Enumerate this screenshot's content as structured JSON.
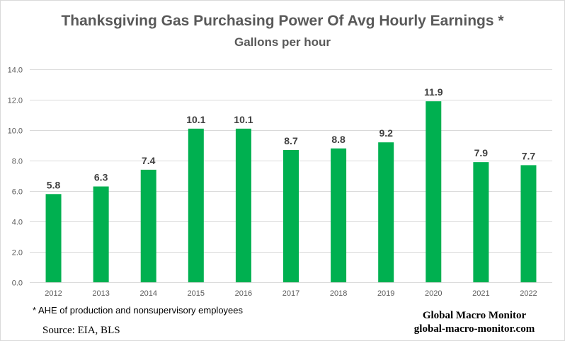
{
  "chart_data": {
    "type": "bar",
    "title": "Thanksgiving Gas Purchasing Power Of Avg Hourly Earnings *",
    "subtitle": "Gallons per hour",
    "categories": [
      "2012",
      "2013",
      "2014",
      "2015",
      "2016",
      "2017",
      "2018",
      "2019",
      "2020",
      "2021",
      "2022"
    ],
    "values": [
      5.8,
      6.3,
      7.4,
      10.1,
      10.1,
      8.7,
      8.8,
      9.2,
      11.9,
      7.9,
      7.7
    ],
    "value_labels": [
      "5.8",
      "6.3",
      "7.4",
      "10.1",
      "10.1",
      "8.7",
      "8.8",
      "9.2",
      "11.9",
      "7.9",
      "7.7"
    ],
    "ylim": [
      0,
      14
    ],
    "yticks": [
      "0.0",
      "2.0",
      "4.0",
      "6.0",
      "8.0",
      "10.0",
      "12.0",
      "14.0"
    ],
    "ytick_values": [
      0,
      2,
      4,
      6,
      8,
      10,
      12,
      14
    ],
    "grid": true,
    "xlabel": "",
    "ylabel": "",
    "bar_color": "#00b050",
    "grid_color": "#d9d9d9"
  },
  "footnote": "* AHE of production and nonsupervisory employees",
  "source": "Source:  EIA,  BLS",
  "brand": {
    "name": "Global Macro Monitor",
    "url": "global-macro-monitor.com"
  }
}
